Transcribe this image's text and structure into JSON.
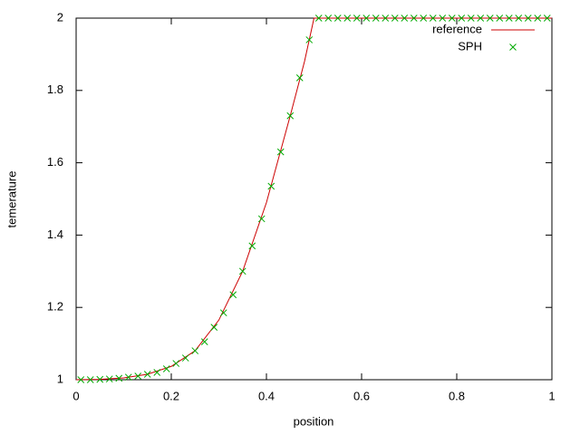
{
  "chart_data": {
    "type": "line",
    "xlabel": "position",
    "ylabel": "temerature",
    "xlim": [
      0,
      1
    ],
    "ylim": [
      1,
      2
    ],
    "xticks": [
      0,
      0.2,
      0.4,
      0.6,
      0.8,
      1
    ],
    "yticks": [
      1,
      1.2,
      1.4,
      1.6,
      1.8,
      2
    ],
    "legend": "top-right",
    "series": [
      {
        "name": "reference",
        "color": "#cc0000",
        "style": "line",
        "x": [
          0,
          0.05,
          0.1,
          0.15,
          0.2,
          0.25,
          0.3,
          0.35,
          0.4,
          0.45,
          0.48,
          0.5,
          1
        ],
        "values": [
          1,
          1.001,
          1.005,
          1.015,
          1.037,
          1.08,
          1.165,
          1.3,
          1.49,
          1.73,
          1.88,
          2,
          2
        ]
      },
      {
        "name": "SPH",
        "color": "#00aa00",
        "style": "points",
        "x": [
          0.01,
          0.03,
          0.05,
          0.07,
          0.09,
          0.11,
          0.13,
          0.15,
          0.17,
          0.19,
          0.21,
          0.23,
          0.25,
          0.27,
          0.29,
          0.31,
          0.33,
          0.35,
          0.37,
          0.39,
          0.41,
          0.43,
          0.45,
          0.47,
          0.49,
          0.51,
          0.53,
          0.55,
          0.57,
          0.59,
          0.61,
          0.63,
          0.65,
          0.67,
          0.69,
          0.71,
          0.73,
          0.75,
          0.77,
          0.79,
          0.81,
          0.83,
          0.85,
          0.87,
          0.89,
          0.91,
          0.93,
          0.95,
          0.97,
          0.99
        ],
        "values": [
          1,
          1,
          1.001,
          1.002,
          1.004,
          1.007,
          1.01,
          1.015,
          1.02,
          1.03,
          1.045,
          1.06,
          1.08,
          1.105,
          1.145,
          1.185,
          1.235,
          1.3,
          1.37,
          1.445,
          1.535,
          1.63,
          1.73,
          1.835,
          1.94,
          2,
          2,
          2,
          2,
          2,
          2,
          2,
          2,
          2,
          2,
          2,
          2,
          2,
          2,
          2,
          2,
          2,
          2,
          2,
          2,
          2,
          2,
          2,
          2,
          2
        ]
      }
    ]
  }
}
